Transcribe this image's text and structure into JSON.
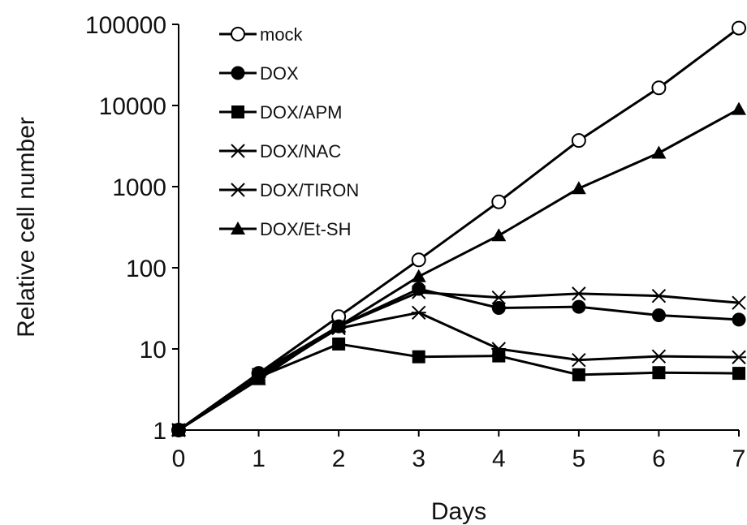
{
  "chart_data": {
    "type": "line",
    "xlabel": "Days",
    "ylabel": "Relative cell number",
    "y_scale": "log",
    "ylim": [
      1,
      100000
    ],
    "xlim": [
      0,
      7
    ],
    "x_ticks": [
      "0",
      "1",
      "2",
      "3",
      "4",
      "5",
      "6",
      "7"
    ],
    "y_ticks": [
      "1",
      "10",
      "100",
      "1000",
      "10000",
      "100000"
    ],
    "grid": false,
    "legend_position": "top-left",
    "x": [
      0,
      1,
      2,
      3,
      4,
      5,
      6,
      7
    ],
    "series": [
      {
        "name": "mock",
        "marker": "open-circle",
        "values": [
          1,
          5,
          25,
          125,
          650,
          3700,
          16500,
          90000
        ]
      },
      {
        "name": "DOX",
        "marker": "filled-circle",
        "values": [
          1,
          5,
          19,
          55,
          32,
          33,
          26,
          23
        ]
      },
      {
        "name": "DOX/APM",
        "marker": "filled-square",
        "values": [
          1,
          4.5,
          11.5,
          8,
          8.2,
          4.8,
          5.1,
          5
        ]
      },
      {
        "name": "DOX/NAC",
        "marker": "x",
        "values": [
          1,
          4.8,
          19,
          50,
          43,
          48,
          45,
          37
        ]
      },
      {
        "name": "DOX/TIRON",
        "marker": "asterisk",
        "values": [
          1,
          4.5,
          18,
          28,
          10,
          7.3,
          8.1,
          7.9
        ]
      },
      {
        "name": "DOX/Et-SH",
        "marker": "filled-triangle",
        "values": [
          1,
          4.2,
          19,
          78,
          250,
          950,
          2600,
          9000
        ]
      }
    ]
  }
}
